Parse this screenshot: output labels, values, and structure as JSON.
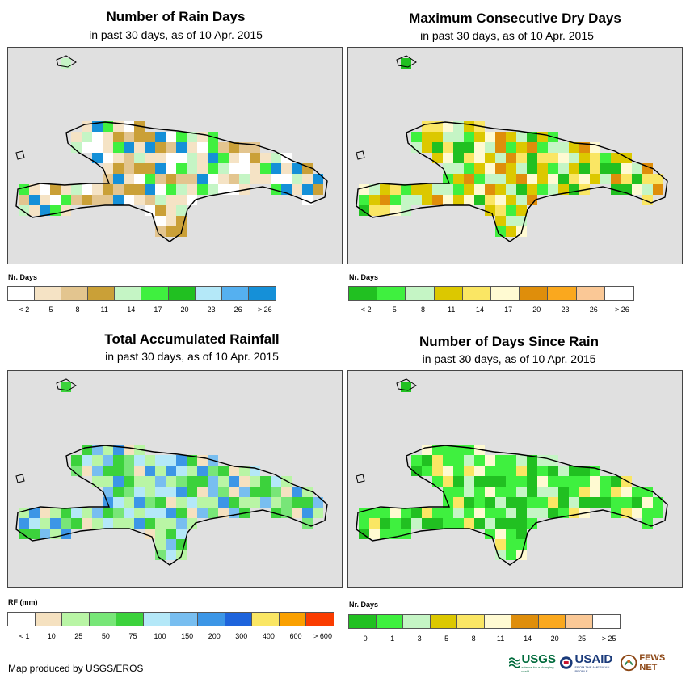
{
  "panels": [
    {
      "title": "Number of Rain Days",
      "subtitle": "in past 30 days, as of 10 Apr. 2015",
      "legend_title": "Nr. Days",
      "legend_colors": [
        "#ffffff",
        "#f5e3c5",
        "#e3c58f",
        "#caa037",
        "#c5f5c5",
        "#3ff03f",
        "#21c021",
        "#b4e8f8",
        "#55b0f0",
        "#1590d8"
      ],
      "legend_labels": [
        "< 2",
        "5",
        "8",
        "11",
        "14",
        "17",
        "20",
        "23",
        "26",
        "> 26"
      ],
      "map_colors": [
        "#f5e3c5",
        "#f5e3c5",
        "#e3c58f",
        "#ffffff",
        "#caa037",
        "#c5f5c5",
        "#3ff03f",
        "#1590d8"
      ]
    },
    {
      "title": "Maximum Consecutive Dry Days",
      "subtitle": "in past 30 days, as of 10 Apr. 2015",
      "legend_title": "Nr. Days",
      "legend_colors": [
        "#21c021",
        "#3ff03f",
        "#c5f5c5",
        "#dcc800",
        "#fae664",
        "#fffad2",
        "#df8e0b",
        "#faa81e",
        "#fac896",
        "#ffffff"
      ],
      "legend_labels": [
        "< 2",
        "5",
        "8",
        "11",
        "14",
        "17",
        "20",
        "23",
        "26",
        "> 26"
      ],
      "map_colors": [
        "#dcc800",
        "#dcc800",
        "#fae664",
        "#c5f5c5",
        "#21c021",
        "#3ff03f",
        "#df8e0b",
        "#fffad2"
      ]
    },
    {
      "title": "Total Accumulated Rainfall",
      "subtitle": "in past 30 days, as of 10 Apr. 2015",
      "legend_title": "RF (mm)",
      "legend_colors": [
        "#ffffff",
        "#f5e1c0",
        "#b9f5a5",
        "#78e678",
        "#3cd23c",
        "#b4e8f8",
        "#78bef0",
        "#3c96e6",
        "#1e64dc",
        "#fae664",
        "#faa000",
        "#fa3c00"
      ],
      "legend_labels": [
        "< 1",
        "10",
        "25",
        "50",
        "75",
        "100",
        "150",
        "200",
        "300",
        "400",
        "600",
        "> 600"
      ],
      "map_colors": [
        "#b9f5a5",
        "#78e678",
        "#b9f5a5",
        "#3cd23c",
        "#b4e8f8",
        "#78bef0",
        "#f5e1c0",
        "#3c96e6"
      ]
    },
    {
      "title": "Number of Days Since Rain",
      "subtitle": "in past 30 days, as of 10 Apr. 2015",
      "legend_title": "Nr. Days",
      "legend_colors": [
        "#21c021",
        "#3ff03f",
        "#c5f5c5",
        "#dcc800",
        "#fae664",
        "#fffad2",
        "#df8e0b",
        "#faa81e",
        "#fac896",
        "#ffffff"
      ],
      "legend_labels": [
        "0",
        "1",
        "3",
        "5",
        "8",
        "11",
        "14",
        "20",
        "25",
        "> 25"
      ],
      "map_colors": [
        "#3ff03f",
        "#3ff03f",
        "#21c021",
        "#3ff03f",
        "#c5f5c5",
        "#fffad2",
        "#fae664",
        "#21c021"
      ]
    }
  ],
  "credit": "Map produced by USGS/EROS",
  "logos": {
    "usgs": "USGS",
    "usgs_tagline": "science for a changing world",
    "usaid": "USAID",
    "usaid_tagline": "FROM THE AMERICAN PEOPLE",
    "fewsnet": "FEWS NET"
  },
  "colors": {
    "map_background": "#e0e0e0",
    "outline": "#000000"
  }
}
